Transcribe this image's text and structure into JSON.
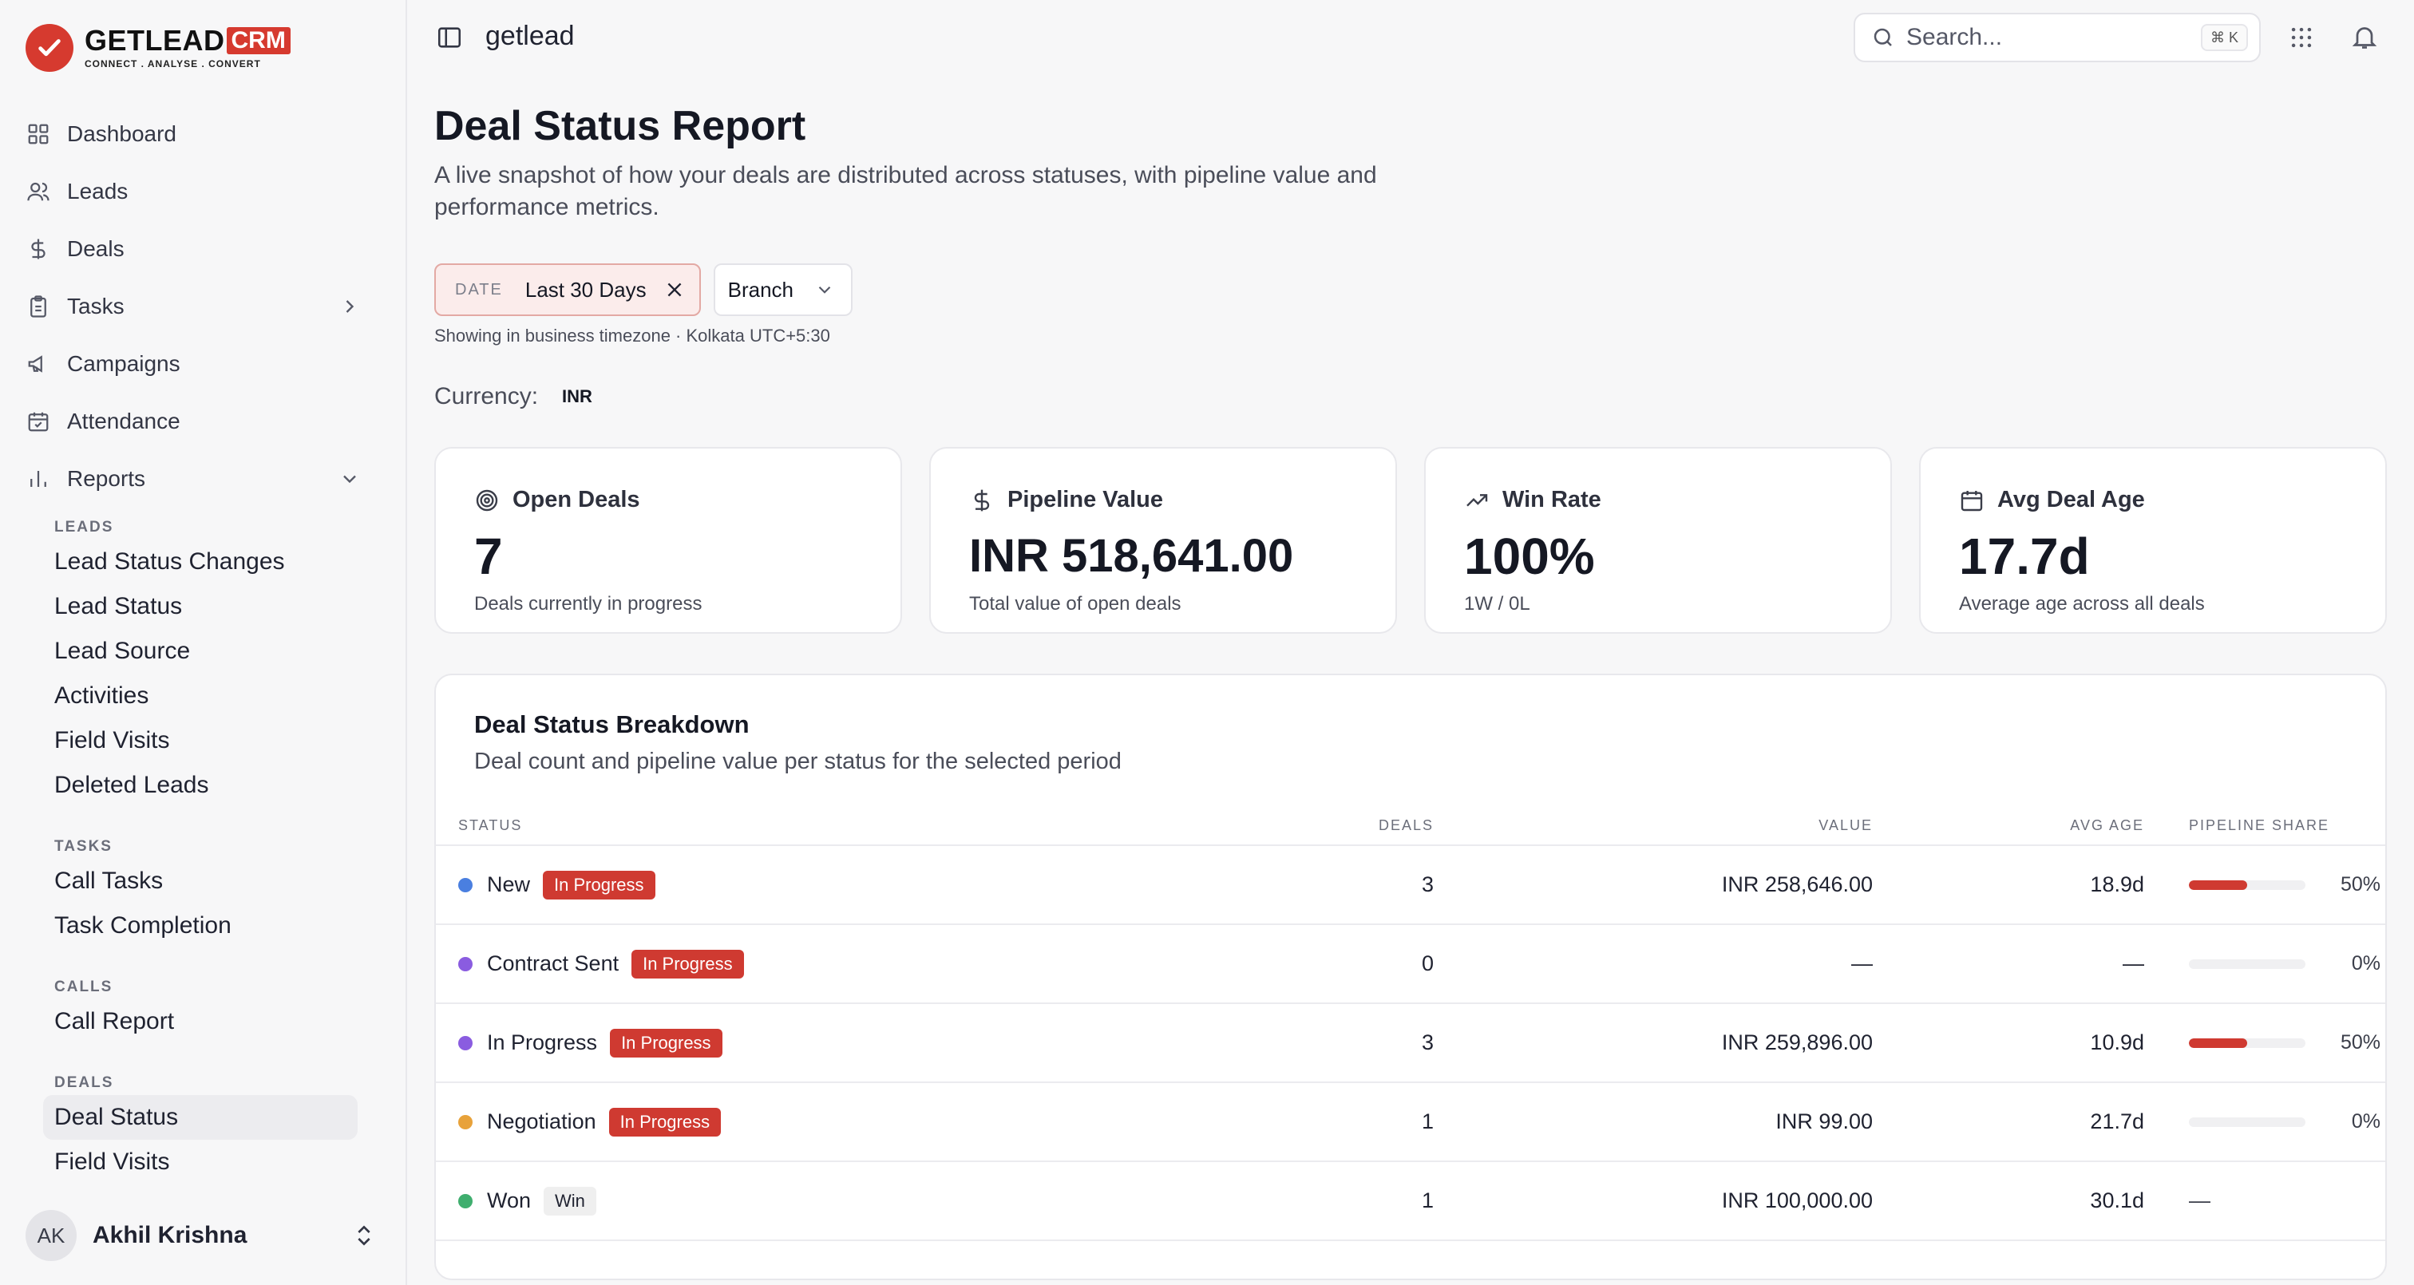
{
  "brand": {
    "name": "GETLEAD",
    "badge": "CRM",
    "tagline": "CONNECT . ANALYSE . CONVERT"
  },
  "nav": [
    {
      "label": "Dashboard",
      "icon": "dashboard-icon"
    },
    {
      "label": "Leads",
      "icon": "users-icon"
    },
    {
      "label": "Deals",
      "icon": "dollar-icon"
    },
    {
      "label": "Tasks",
      "icon": "clipboard-icon"
    },
    {
      "label": "Campaigns",
      "icon": "megaphone-icon"
    },
    {
      "label": "Attendance",
      "icon": "calendar-check-icon"
    },
    {
      "label": "Reports",
      "icon": "bar-chart-icon"
    }
  ],
  "reports": {
    "sections": [
      {
        "heading": "LEADS",
        "items": [
          "Lead Status Changes",
          "Lead Status",
          "Lead Source",
          "Activities",
          "Field Visits",
          "Deleted Leads"
        ]
      },
      {
        "heading": "TASKS",
        "items": [
          "Call Tasks",
          "Task Completion"
        ]
      },
      {
        "heading": "CALLS",
        "items": [
          "Call Report"
        ]
      },
      {
        "heading": "DEALS",
        "items": [
          "Deal Status",
          "Field Visits"
        ]
      }
    ],
    "active": "Deal Status"
  },
  "user": {
    "initials": "AK",
    "name": "Akhil Krishna"
  },
  "topbar": {
    "crumb": "getlead",
    "search_placeholder": "Search...",
    "shortcut": "⌘ K"
  },
  "page": {
    "title": "Deal Status Report",
    "description": "A live snapshot of how your deals are distributed across statuses, with pipeline value and performance metrics.",
    "filters": {
      "date_label": "DATE",
      "date_value": "Last 30 Days",
      "branch_label": "Branch"
    },
    "timezone_note": "Showing in business timezone · Kolkata UTC+5:30",
    "currency_label": "Currency:",
    "currency_value": "INR"
  },
  "cards": [
    {
      "title": "Open Deals",
      "value": "7",
      "sub": "Deals currently in progress",
      "icon": "target-icon"
    },
    {
      "title": "Pipeline Value",
      "value": "INR 518,641.00",
      "sub": "Total value of open deals",
      "icon": "dollar-icon"
    },
    {
      "title": "Win Rate",
      "value": "100%",
      "sub": "1W / 0L",
      "icon": "trending-up-icon"
    },
    {
      "title": "Avg Deal Age",
      "value": "17.7d",
      "sub": "Average age across all deals",
      "icon": "calendar-icon"
    }
  ],
  "breakdown": {
    "title": "Deal Status Breakdown",
    "description": "Deal count and pipeline value per status for the selected period",
    "columns": [
      "STATUS",
      "DEALS",
      "VALUE",
      "AVG AGE",
      "PIPELINE SHARE"
    ],
    "rows": [
      {
        "status": "New",
        "dot": "#4a7fe0",
        "badge": "In Progress",
        "badge_type": "progress",
        "deals": "3",
        "value": "INR 258,646.00",
        "age": "18.9d",
        "share": 50,
        "share_label": "50%"
      },
      {
        "status": "Contract Sent",
        "dot": "#8a5ce0",
        "badge": "In Progress",
        "badge_type": "progress",
        "deals": "0",
        "value": "—",
        "age": "—",
        "share": 0,
        "share_label": "0%"
      },
      {
        "status": "In Progress",
        "dot": "#8a5ce0",
        "badge": "In Progress",
        "badge_type": "progress",
        "deals": "3",
        "value": "INR 259,896.00",
        "age": "10.9d",
        "share": 50,
        "share_label": "50%"
      },
      {
        "status": "Negotiation",
        "dot": "#e8a23a",
        "badge": "In Progress",
        "badge_type": "progress",
        "deals": "1",
        "value": "INR 99.00",
        "age": "21.7d",
        "share": 0,
        "share_label": "0%"
      },
      {
        "status": "Won",
        "dot": "#3fae6e",
        "badge": "Win",
        "badge_type": "win",
        "deals": "1",
        "value": "INR 100,000.00",
        "age": "30.1d",
        "share": null,
        "share_label": "—"
      }
    ]
  },
  "colors": {
    "accent": "#cf3a31",
    "brand": "#d63a2f"
  }
}
